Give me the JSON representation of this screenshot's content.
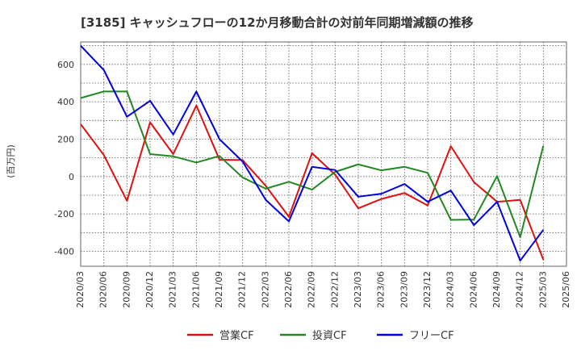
{
  "chart_data": {
    "type": "line",
    "title": "[3185]  キャッシュフローの12か月移動合計の対前年同期増減額の推移",
    "ylabel": "(百万円)",
    "ylim": [
      -480,
      720
    ],
    "yticks": [
      600,
      400,
      200,
      0,
      -200,
      -400
    ],
    "grid": true,
    "legend_position": "bottom",
    "categories": [
      "2020/03",
      "2020/06",
      "2020/09",
      "2020/12",
      "2021/03",
      "2021/06",
      "2021/09",
      "2021/12",
      "2022/03",
      "2022/06",
      "2022/09",
      "2022/12",
      "2023/03",
      "2023/06",
      "2023/09",
      "2023/12",
      "2024/03",
      "2024/06",
      "2024/09",
      "2024/12",
      "2025/03",
      "2025/06"
    ],
    "series": [
      {
        "name": "営業CF",
        "color": "#dd1111",
        "values": [
          280,
          115,
          -130,
          290,
          120,
          380,
          90,
          88,
          -50,
          -215,
          125,
          10,
          -170,
          -120,
          -88,
          -155,
          162,
          -30,
          -135,
          -125,
          -445,
          null
        ]
      },
      {
        "name": "投資CF",
        "color": "#228822",
        "values": [
          420,
          455,
          455,
          120,
          108,
          75,
          110,
          -5,
          -65,
          -28,
          -70,
          25,
          65,
          33,
          52,
          20,
          -232,
          -230,
          2,
          -325,
          165,
          null
        ]
      },
      {
        "name": "フリーCF",
        "color": "#0000dd",
        "values": [
          700,
          570,
          320,
          405,
          225,
          455,
          200,
          80,
          -125,
          -240,
          52,
          35,
          -108,
          -92,
          -40,
          -135,
          -75,
          -260,
          -135,
          -450,
          -285,
          null
        ]
      }
    ]
  }
}
